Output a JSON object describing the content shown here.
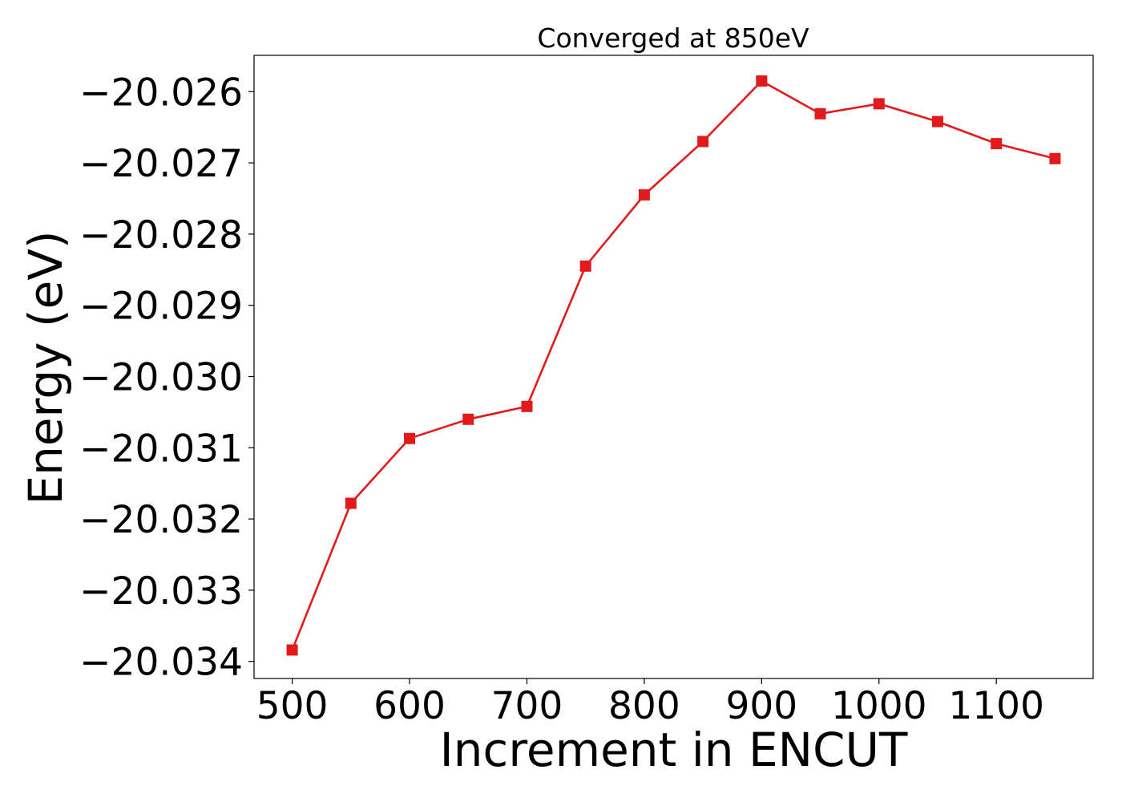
{
  "chart_data": {
    "type": "line",
    "title": "Converged at 850eV",
    "xlabel": "Increment in ENCUT",
    "ylabel": "Energy (eV)",
    "xlim": [
      467.5,
      1182.5
    ],
    "ylim": [
      -20.03424,
      -20.02549
    ],
    "x_ticks": [
      500,
      600,
      700,
      800,
      900,
      1000,
      1100
    ],
    "x_tick_labels": [
      "500",
      "600",
      "700",
      "800",
      "900",
      "1000",
      "1100"
    ],
    "y_ticks": [
      -20.026,
      -20.027,
      -20.028,
      -20.029,
      -20.03,
      -20.031,
      -20.032,
      -20.033,
      -20.034
    ],
    "y_tick_labels": [
      "−20.026",
      "−20.027",
      "−20.028",
      "−20.029",
      "−20.030",
      "−20.031",
      "−20.032",
      "−20.033",
      "−20.034"
    ],
    "grid": false,
    "series": [
      {
        "color": "#e31a1c",
        "marker": "square",
        "x": [
          500,
          550,
          600,
          650,
          700,
          750,
          800,
          850,
          900,
          950,
          1000,
          1050,
          1100,
          1150
        ],
        "y": [
          -20.03384,
          -20.03178,
          -20.03087,
          -20.0306,
          -20.03042,
          -20.02845,
          -20.02745,
          -20.0267,
          -20.02585,
          -20.02631,
          -20.02617,
          -20.02642,
          -20.02673,
          -20.02694
        ]
      }
    ]
  }
}
